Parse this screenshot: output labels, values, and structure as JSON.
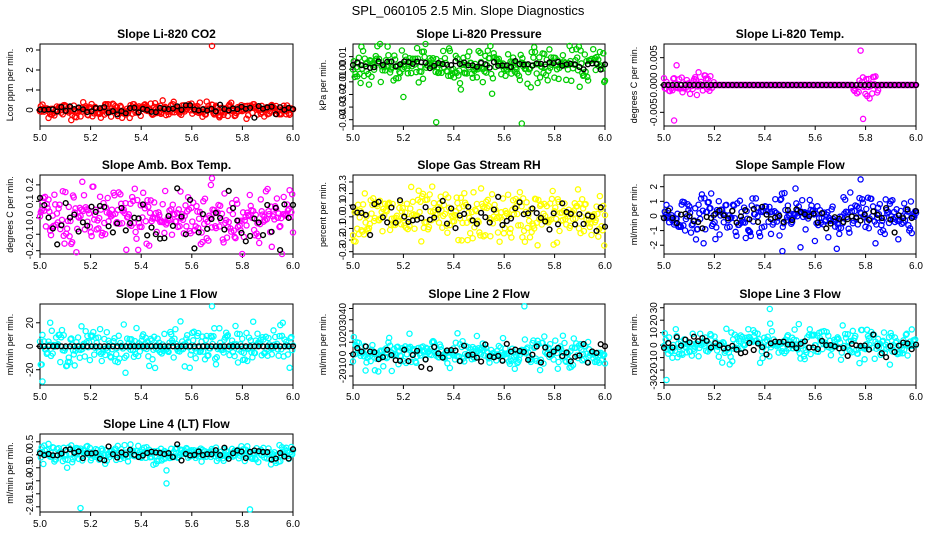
{
  "figure_title": "SPL_060105  2.5 Min. Slope Diagnostics",
  "colors": {
    "co2": "#ff0000",
    "pressure": "#00cc00",
    "temp": "#ff00ff",
    "box": "#ff00ff",
    "rh": "#ffff00",
    "sample": "#0000ff",
    "lineflow": "#00ffff",
    "overlay": "#000000"
  },
  "chart_data": [
    {
      "type": "scatter",
      "title": "Slope Li-820 CO2",
      "ylabel": "Lcor ppm per min.",
      "xlim": [
        5.0,
        6.0
      ],
      "ylim": [
        -0.8,
        3.3
      ],
      "xticks": [
        "5.0",
        "5.2",
        "5.4",
        "5.6",
        "5.8",
        "6.0"
      ],
      "yticks": [
        0,
        1,
        2,
        3
      ],
      "ytick_labels": [
        "0",
        "1",
        "2",
        "3"
      ],
      "color": "#ff0000",
      "series": [
        {
          "name": "diagnostic slope",
          "center": 0.0,
          "spread": 0.35
        },
        {
          "name": "overlay",
          "color": "#000000",
          "center": 0.05,
          "spread": 0.25
        }
      ],
      "outliers": [
        [
          5.68,
          3.2
        ]
      ]
    },
    {
      "type": "scatter",
      "title": "Slope Li-820 Pressure",
      "ylabel": "kPa per min.",
      "xlim": [
        5.0,
        6.0
      ],
      "ylim": [
        -0.045,
        0.02
      ],
      "xticks": [
        "5.0",
        "5.2",
        "5.4",
        "5.6",
        "5.8",
        "6.0"
      ],
      "yticks": [
        -0.04,
        -0.03,
        -0.02,
        -0.01,
        0.0,
        0.01
      ],
      "ytick_labels": [
        "-0.04",
        "-0.03",
        "-0.02",
        "-0.01",
        "0.00",
        "0.01"
      ],
      "color": "#00cc00",
      "series": [
        {
          "name": "diagnostic slope",
          "center": 0.003,
          "spread": 0.012
        },
        {
          "name": "overlay",
          "color": "#000000",
          "center": 0.004,
          "spread": 0.004
        }
      ],
      "outliers": [
        [
          5.33,
          -0.042
        ],
        [
          5.67,
          -0.043
        ],
        [
          5.2,
          -0.022
        ]
      ]
    },
    {
      "type": "scatter",
      "title": "Slope Li-820 Temp.",
      "ylabel": "degrees C per min.",
      "xlim": [
        5.0,
        6.0
      ],
      "ylim": [
        -0.0075,
        0.0075
      ],
      "xticks": [
        "5.0",
        "5.2",
        "5.4",
        "5.6",
        "5.8",
        "6.0"
      ],
      "yticks": [
        -0.005,
        0.0,
        0.005
      ],
      "ytick_labels": [
        "-0.005",
        "0.000",
        "0.005"
      ],
      "color": "#ff00ff",
      "series": [
        {
          "name": "diagnostic slope",
          "center": 0.0,
          "spread": 0.002,
          "active_ranges": [
            [
              5.0,
              5.2
            ],
            [
              5.75,
              5.85
            ]
          ]
        },
        {
          "name": "overlay",
          "color": "#000000",
          "center": 0.0,
          "spread": 0.0
        }
      ],
      "outliers": [
        [
          5.04,
          -0.0065
        ],
        [
          5.78,
          0.0063
        ],
        [
          5.79,
          -0.0062
        ]
      ]
    },
    {
      "type": "scatter",
      "title": "Slope Amb. Box Temp.",
      "ylabel": "degrees C per min.",
      "xlim": [
        5.0,
        6.0
      ],
      "ylim": [
        -0.22,
        0.26
      ],
      "xticks": [
        "5.0",
        "5.2",
        "5.4",
        "5.6",
        "5.8",
        "6.0"
      ],
      "yticks": [
        -0.2,
        -0.1,
        0.0,
        0.1,
        0.2
      ],
      "ytick_labels": [
        "-0.2",
        "-0.1",
        "0.0",
        "0.1",
        "0.2"
      ],
      "color": "#ff00ff",
      "series": [
        {
          "name": "diagnostic slope",
          "center": 0.0,
          "spread": 0.17
        },
        {
          "name": "overlay",
          "color": "#000000",
          "center": 0.0,
          "spread": 0.15
        }
      ],
      "outliers": [
        [
          5.68,
          0.24
        ]
      ]
    },
    {
      "type": "scatter",
      "title": "Slope Gas Stream RH",
      "ylabel": "percent per min.",
      "xlim": [
        5.0,
        6.0
      ],
      "ylim": [
        -0.32,
        0.36
      ],
      "xticks": [
        "5.0",
        "5.2",
        "5.4",
        "5.6",
        "5.8",
        "6.0"
      ],
      "yticks": [
        -0.3,
        -0.2,
        -0.1,
        0.0,
        0.1,
        0.2,
        0.3
      ],
      "ytick_labels": [
        "-0.3",
        "-0.2",
        "-0.1",
        "0.0",
        "0.1",
        "0.2",
        "0.3"
      ],
      "color": "#ffff00",
      "series": [
        {
          "name": "diagnostic slope",
          "center": 0.0,
          "spread": 0.2
        },
        {
          "name": "overlay",
          "color": "#000000",
          "center": 0.0,
          "spread": 0.15
        }
      ],
      "outliers": []
    },
    {
      "type": "scatter",
      "title": "Slope Sample Flow",
      "ylabel": "ml/min per min.",
      "xlim": [
        5.0,
        6.0
      ],
      "ylim": [
        -2.6,
        2.8
      ],
      "xticks": [
        "5.0",
        "5.2",
        "5.4",
        "5.6",
        "5.8",
        "6.0"
      ],
      "yticks": [
        -2,
        -1,
        0,
        1,
        2
      ],
      "ytick_labels": [
        "-2",
        "-1",
        "0",
        "1",
        "2"
      ],
      "color": "#0000ff",
      "series": [
        {
          "name": "diagnostic slope",
          "center": 0.0,
          "spread": 1.3
        },
        {
          "name": "overlay",
          "color": "#000000",
          "center": 0.0,
          "spread": 0.6
        }
      ],
      "outliers": [
        [
          5.78,
          2.5
        ],
        [
          5.47,
          -2.4
        ]
      ]
    },
    {
      "type": "scatter",
      "title": "Slope Line 1 Flow",
      "ylabel": "ml/min per min.",
      "xlim": [
        5.0,
        6.0
      ],
      "ylim": [
        -33,
        36
      ],
      "xticks": [
        "5.0",
        "5.2",
        "5.4",
        "5.6",
        "5.8",
        "6.0"
      ],
      "yticks": [
        -20,
        0,
        20
      ],
      "ytick_labels": [
        "-20",
        "0",
        "20"
      ],
      "color": "#00ffff",
      "series": [
        {
          "name": "diagnostic slope",
          "center": 0.0,
          "spread": 14
        },
        {
          "name": "overlay",
          "color": "#000000",
          "center": 0.0,
          "spread": 0.0
        }
      ],
      "outliers": [
        [
          5.68,
          34
        ],
        [
          5.01,
          -30
        ]
      ]
    },
    {
      "type": "scatter",
      "title": "Slope Line 2 Flow",
      "ylabel": "ml/min per min.",
      "xlim": [
        5.0,
        6.0
      ],
      "ylim": [
        -28,
        44
      ],
      "xticks": [
        "5.0",
        "5.2",
        "5.4",
        "5.6",
        "5.8",
        "6.0"
      ],
      "yticks": [
        -20,
        -10,
        0,
        10,
        20,
        30,
        40
      ],
      "ytick_labels": [
        "-20",
        "-10",
        "0",
        "10",
        "20",
        "30",
        "40"
      ],
      "color": "#00ffff",
      "series": [
        {
          "name": "diagnostic slope",
          "center": 0.0,
          "spread": 11
        },
        {
          "name": "overlay",
          "color": "#000000",
          "center": 0.0,
          "spread": 9
        }
      ],
      "outliers": [
        [
          5.68,
          42
        ]
      ]
    },
    {
      "type": "scatter",
      "title": "Slope Line 3 Flow",
      "ylabel": "ml/min per min.",
      "xlim": [
        5.0,
        6.0
      ],
      "ylim": [
        -32,
        33
      ],
      "xticks": [
        "5.0",
        "5.2",
        "5.4",
        "5.6",
        "5.8",
        "6.0"
      ],
      "yticks": [
        -30,
        -20,
        -10,
        0,
        10,
        20,
        30
      ],
      "ytick_labels": [
        "-30",
        "-20",
        "-10",
        "0",
        "10",
        "20",
        "30"
      ],
      "color": "#00ffff",
      "series": [
        {
          "name": "diagnostic slope",
          "center": 0.0,
          "spread": 11
        },
        {
          "name": "overlay",
          "color": "#000000",
          "center": 0.0,
          "spread": 8
        }
      ],
      "outliers": [
        [
          5.01,
          -28
        ],
        [
          5.42,
          29
        ]
      ]
    },
    {
      "type": "scatter",
      "title": "Slope Line 4 (LT) Flow",
      "ylabel": "ml/min per min.",
      "xlim": [
        5.0,
        6.0
      ],
      "ylim": [
        -2.2,
        0.8
      ],
      "xticks": [
        "5.0",
        "5.2",
        "5.4",
        "5.6",
        "5.8",
        "6.0"
      ],
      "yticks": [
        -2.0,
        -1.5,
        -1.0,
        -0.5,
        0.0,
        0.5
      ],
      "ytick_labels": [
        "-2.0",
        "-1.5",
        "-1.0",
        "-0.5",
        "0.0",
        "0.5"
      ],
      "color": "#00ffff",
      "series": [
        {
          "name": "diagnostic slope",
          "center": 0.05,
          "spread": 0.3
        },
        {
          "name": "overlay",
          "color": "#000000",
          "center": 0.05,
          "spread": 0.25
        }
      ],
      "outliers": [
        [
          5.16,
          -2.05
        ],
        [
          5.83,
          -2.1
        ],
        [
          5.5,
          -1.1
        ],
        [
          5.5,
          -0.6
        ]
      ]
    }
  ]
}
